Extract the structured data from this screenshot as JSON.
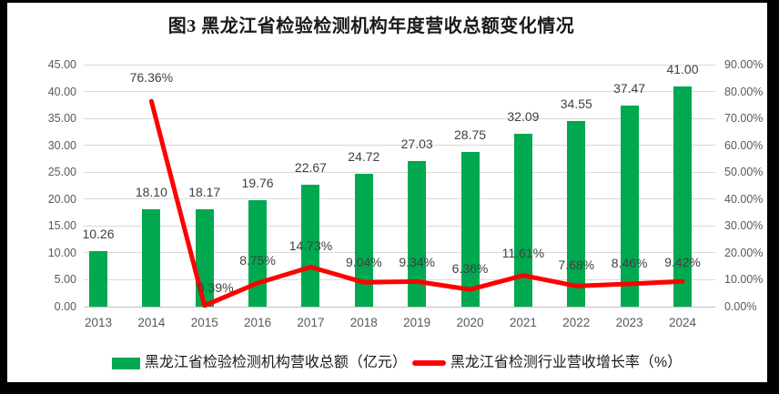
{
  "window": {
    "background": "#000000"
  },
  "title": "图3 黑龙江省检验检测机构年度营收总额变化情况",
  "chart_data": {
    "type": "combo",
    "title": "图3 黑龙江省检验检测机构年度营收总额变化情况",
    "categories": [
      "2013",
      "2014",
      "2015",
      "2016",
      "2017",
      "2018",
      "2019",
      "2020",
      "2021",
      "2022",
      "2023",
      "2024"
    ],
    "series": [
      {
        "name": "黑龙江省检验检测机构营收总额（亿元）",
        "type": "bar",
        "axis": "left",
        "color": "#00a950",
        "values": [
          10.26,
          18.1,
          18.17,
          19.76,
          22.67,
          24.72,
          27.03,
          28.75,
          32.09,
          34.55,
          37.47,
          41.0
        ],
        "labels": [
          "10.26",
          "18.10",
          "18.17",
          "19.76",
          "22.67",
          "24.72",
          "27.03",
          "28.75",
          "32.09",
          "34.55",
          "37.47",
          "41.00"
        ]
      },
      {
        "name": "黑龙江省检测行业营收增长率（%）",
        "type": "line",
        "axis": "right",
        "color": "#ff0000",
        "values": [
          null,
          76.36,
          0.39,
          8.75,
          14.73,
          9.04,
          9.34,
          6.36,
          11.61,
          7.68,
          8.46,
          9.42
        ],
        "labels": [
          "",
          "76.36%",
          "0.39%",
          "8.75%",
          "14.73%",
          "9.04%",
          "9.34%",
          "6.36%",
          "11.61%",
          "7.68%",
          "8.46%",
          "9.42%"
        ],
        "label_offsets": [
          [
            0,
            0
          ],
          [
            0,
            -33
          ],
          [
            12,
            -27
          ],
          [
            0,
            -32
          ],
          [
            0,
            -30
          ],
          [
            0,
            -29
          ],
          [
            0,
            -28
          ],
          [
            0,
            -30
          ],
          [
            0,
            -32
          ],
          [
            0,
            -30
          ],
          [
            0,
            -30
          ],
          [
            0,
            -28
          ]
        ]
      }
    ],
    "axes": {
      "left": {
        "min": 0,
        "max": 45,
        "step": 5,
        "ticks": [
          "45.00",
          "40.00",
          "35.00",
          "30.00",
          "25.00",
          "20.00",
          "15.00",
          "10.00",
          "5.00",
          "0.00"
        ]
      },
      "right": {
        "min": 0,
        "max": 90,
        "step": 10,
        "ticks": [
          "90.00%",
          "80.00%",
          "70.00%",
          "60.00%",
          "50.00%",
          "40.00%",
          "30.00%",
          "20.00%",
          "10.00%",
          "0.00%"
        ]
      }
    },
    "grid": true,
    "legend_position": "bottom",
    "gridline_color": "#d9d9d9",
    "axis_text_color": "#595959",
    "label_text_color": "#404040"
  },
  "legend": {
    "items": [
      {
        "label": "黑龙江省检验检测机构营收总额（亿元）",
        "swatch": "bar",
        "color": "#00a950"
      },
      {
        "label": "黑龙江省检测行业营收增长率（%）",
        "swatch": "line",
        "color": "#ff0000"
      }
    ]
  }
}
